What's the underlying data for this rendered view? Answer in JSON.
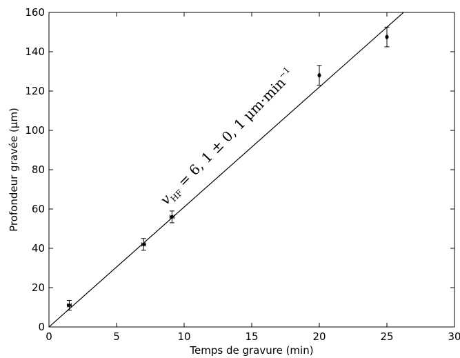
{
  "chart_data": {
    "type": "scatter",
    "xlabel": "Temps de gravure (min)",
    "ylabel": "Profondeur gravée (μm)",
    "xlim": [
      0,
      30
    ],
    "ylim": [
      0,
      160
    ],
    "xticks": [
      "0",
      "5",
      "10",
      "15",
      "20",
      "25",
      "30"
    ],
    "yticks": [
      "0",
      "20",
      "40",
      "60",
      "80",
      "100",
      "120",
      "140",
      "160"
    ],
    "grid": false,
    "series": [
      {
        "points": [
          {
            "x": 1.5,
            "y": 11,
            "yerr": 2.5,
            "xerr": 0.15
          },
          {
            "x": 7.0,
            "y": 42,
            "yerr": 3.0,
            "xerr": 0.15
          },
          {
            "x": 9.1,
            "y": 56,
            "yerr": 3.0,
            "xerr": 0.15
          },
          {
            "x": 20.0,
            "y": 128,
            "yerr": 5.0,
            "xerr": 0.05
          },
          {
            "x": 25.0,
            "y": 147.5,
            "yerr": 5.0,
            "xerr": 0.05
          }
        ]
      }
    ],
    "fit_line": {
      "slope": 6.1,
      "intercept": 0
    },
    "annotation": {
      "v": "v",
      "sub": "HF",
      "body": " = 6, 1 ± 0, 1 μm·min",
      "sup": "−1"
    }
  }
}
